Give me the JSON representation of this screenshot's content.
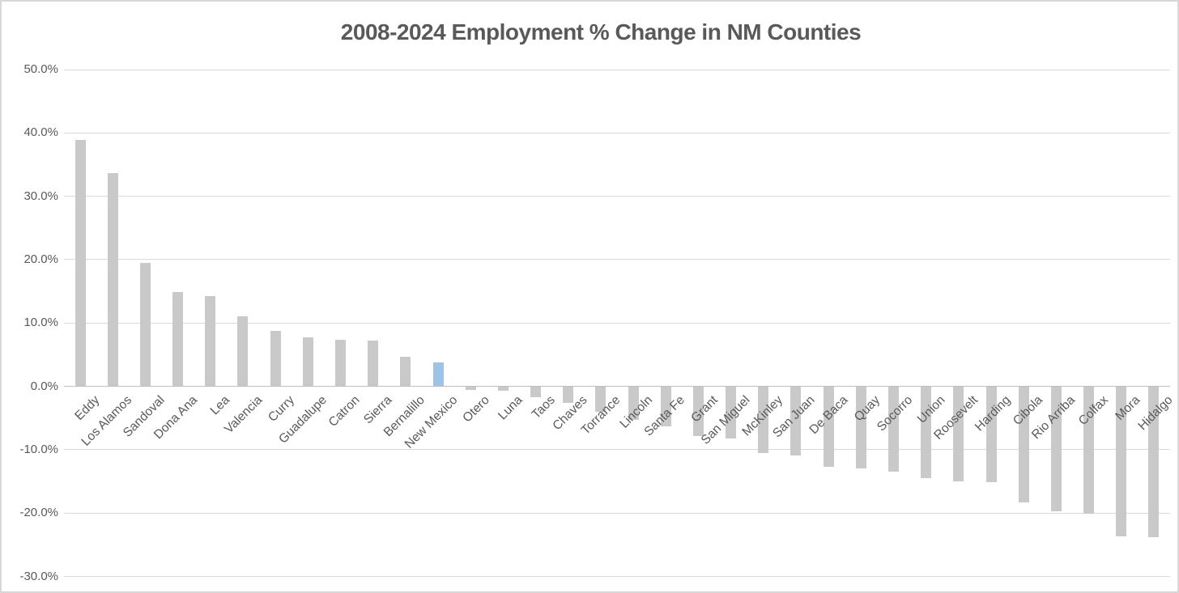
{
  "chart_data": {
    "type": "bar",
    "title": "2008-2024 Employment % Change in NM Counties",
    "categories": [
      "Eddy",
      "Los Alamos",
      "Sandoval",
      "Dona Ana",
      "Lea",
      "Valencia",
      "Curry",
      "Guadalupe",
      "Catron",
      "Sierra",
      "Bernalillo",
      "New Mexico",
      "Otero",
      "Luna",
      "Taos",
      "Chaves",
      "Torrance",
      "Lincoln",
      "Santa Fe",
      "Grant",
      "San Miguel",
      "McKinley",
      "San Juan",
      "De Baca",
      "Quay",
      "Socorro",
      "Union",
      "Roosevelt",
      "Harding",
      "Cibola",
      "Rio Arriba",
      "Colfax",
      "Mora",
      "Hidalgo"
    ],
    "values": [
      38.8,
      33.6,
      19.4,
      14.8,
      14.2,
      11.0,
      8.7,
      7.7,
      7.3,
      7.1,
      4.6,
      3.7,
      -0.5,
      -0.6,
      -1.7,
      -2.5,
      -3.9,
      -5.2,
      -6.2,
      -7.8,
      -8.2,
      -10.5,
      -10.8,
      -12.6,
      -12.9,
      -13.4,
      -14.4,
      -14.9,
      -15.1,
      -18.2,
      -19.6,
      -20.0,
      -23.6,
      -23.8
    ],
    "value_unit": "%",
    "highlight_category": "New Mexico",
    "xlabel": "",
    "ylabel": "",
    "ylim": [
      -30,
      50
    ],
    "ytick_interval": 10,
    "ytick_labels": [
      "50.0%",
      "40.0%",
      "30.0%",
      "20.0%",
      "10.0%",
      "0.0%",
      "-10.0%",
      "-20.0%",
      "-30.0%"
    ],
    "grid": true,
    "legend": false,
    "colors": {
      "bar": "#c9c9c9",
      "highlight_bar": "#9dc3e6",
      "title_text": "#595959",
      "axis_text": "#595959",
      "gridline": "#d9d9d9",
      "zero_line": "#bfbfbf",
      "background": "#ffffff",
      "page_border": "#d7d7d7"
    }
  }
}
